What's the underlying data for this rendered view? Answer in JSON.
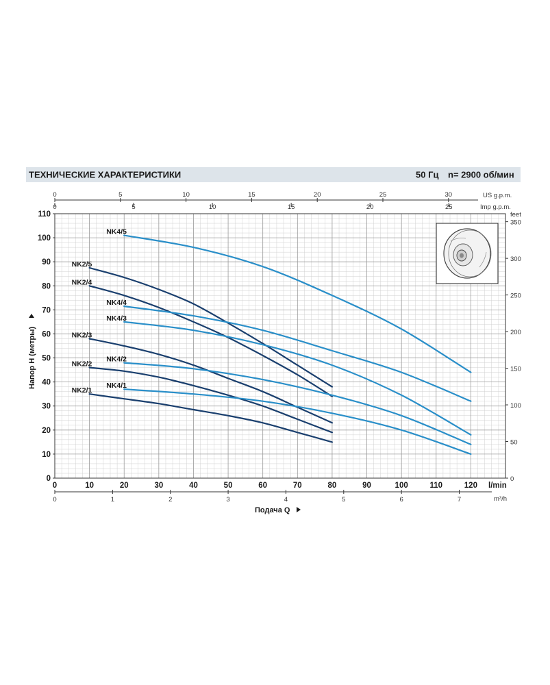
{
  "header": {
    "title": "ТЕХНИЧЕСКИЕ ХАРАКТЕРИСТИКИ",
    "frequency": "50 Гц",
    "speed": "n= 2900 об/мин"
  },
  "colors": {
    "header_band": "#dde4ea",
    "nk2": "#1a3f6e",
    "nk4": "#2a8fc9",
    "grid_major": "#9a9a9a",
    "grid_minor": "#d0d0d0"
  },
  "chart_data": {
    "type": "line",
    "xlabel": "Подача Q",
    "ylabel": "Напор H (метры)",
    "x_unit": "l/min",
    "xlim": [
      0,
      130
    ],
    "ylim": [
      0,
      110
    ],
    "x_ticks": [
      0,
      10,
      20,
      30,
      40,
      50,
      60,
      70,
      80,
      90,
      100,
      110,
      120
    ],
    "y_ticks": [
      0,
      10,
      20,
      30,
      40,
      50,
      60,
      70,
      80,
      90,
      100,
      110
    ],
    "grid": true,
    "secondary_axes": {
      "us_gpm": {
        "label": "US g.p.m.",
        "ticks": [
          0,
          5,
          10,
          15,
          20,
          25,
          30
        ]
      },
      "imp_gpm": {
        "label": "Imp g.p.m.",
        "ticks": [
          0,
          5,
          10,
          15,
          20,
          25
        ]
      },
      "m3h": {
        "label": "m³/h",
        "ticks": [
          0,
          1,
          2,
          3,
          4,
          5,
          6,
          7
        ]
      },
      "feet": {
        "label": "feet",
        "ticks": [
          0,
          50,
          100,
          150,
          200,
          250,
          300,
          350
        ]
      }
    },
    "series": [
      {
        "name": "NK2/5",
        "group": "nk2",
        "x": [
          10,
          20,
          30,
          40,
          50,
          60,
          70,
          80
        ],
        "y": [
          87.5,
          83.5,
          78.5,
          72.5,
          64.5,
          56,
          47,
          38
        ]
      },
      {
        "name": "NK2/4",
        "group": "nk2",
        "x": [
          10,
          20,
          30,
          40,
          50,
          60,
          70,
          80
        ],
        "y": [
          80,
          76,
          71,
          65,
          58.5,
          51,
          43,
          34
        ]
      },
      {
        "name": "NK2/3",
        "group": "nk2",
        "x": [
          10,
          20,
          30,
          40,
          50,
          60,
          70,
          80
        ],
        "y": [
          58,
          55,
          51.5,
          47,
          41.5,
          36,
          29.5,
          23
        ]
      },
      {
        "name": "NK2/2",
        "group": "nk2",
        "x": [
          10,
          20,
          30,
          40,
          50,
          60,
          70,
          80
        ],
        "y": [
          46,
          44.5,
          42,
          38.5,
          34.5,
          30,
          24.5,
          19
        ]
      },
      {
        "name": "NK2/1",
        "group": "nk2",
        "x": [
          10,
          20,
          30,
          40,
          50,
          60,
          70,
          80
        ],
        "y": [
          35,
          33,
          31,
          28.5,
          26,
          23,
          19,
          15
        ]
      },
      {
        "name": "NK4/5",
        "group": "nk4",
        "x": [
          20,
          40,
          60,
          80,
          100,
          120
        ],
        "y": [
          101,
          96,
          88,
          76,
          62,
          44
        ]
      },
      {
        "name": "NK4/4",
        "group": "nk4",
        "x": [
          20,
          40,
          60,
          80,
          100,
          120
        ],
        "y": [
          71.5,
          67.5,
          61.5,
          53,
          44,
          32
        ]
      },
      {
        "name": "NK4/3",
        "group": "nk4",
        "x": [
          20,
          40,
          60,
          80,
          100,
          120
        ],
        "y": [
          65,
          61.5,
          55.5,
          47,
          34.5,
          18
        ]
      },
      {
        "name": "NK4/2",
        "group": "nk4",
        "x": [
          20,
          40,
          60,
          80,
          100,
          120
        ],
        "y": [
          48,
          45.5,
          41,
          34.5,
          26,
          14
        ]
      },
      {
        "name": "NK4/1",
        "group": "nk4",
        "x": [
          20,
          40,
          60,
          80,
          100,
          120
        ],
        "y": [
          37,
          35,
          32,
          27,
          20,
          10
        ]
      }
    ]
  }
}
